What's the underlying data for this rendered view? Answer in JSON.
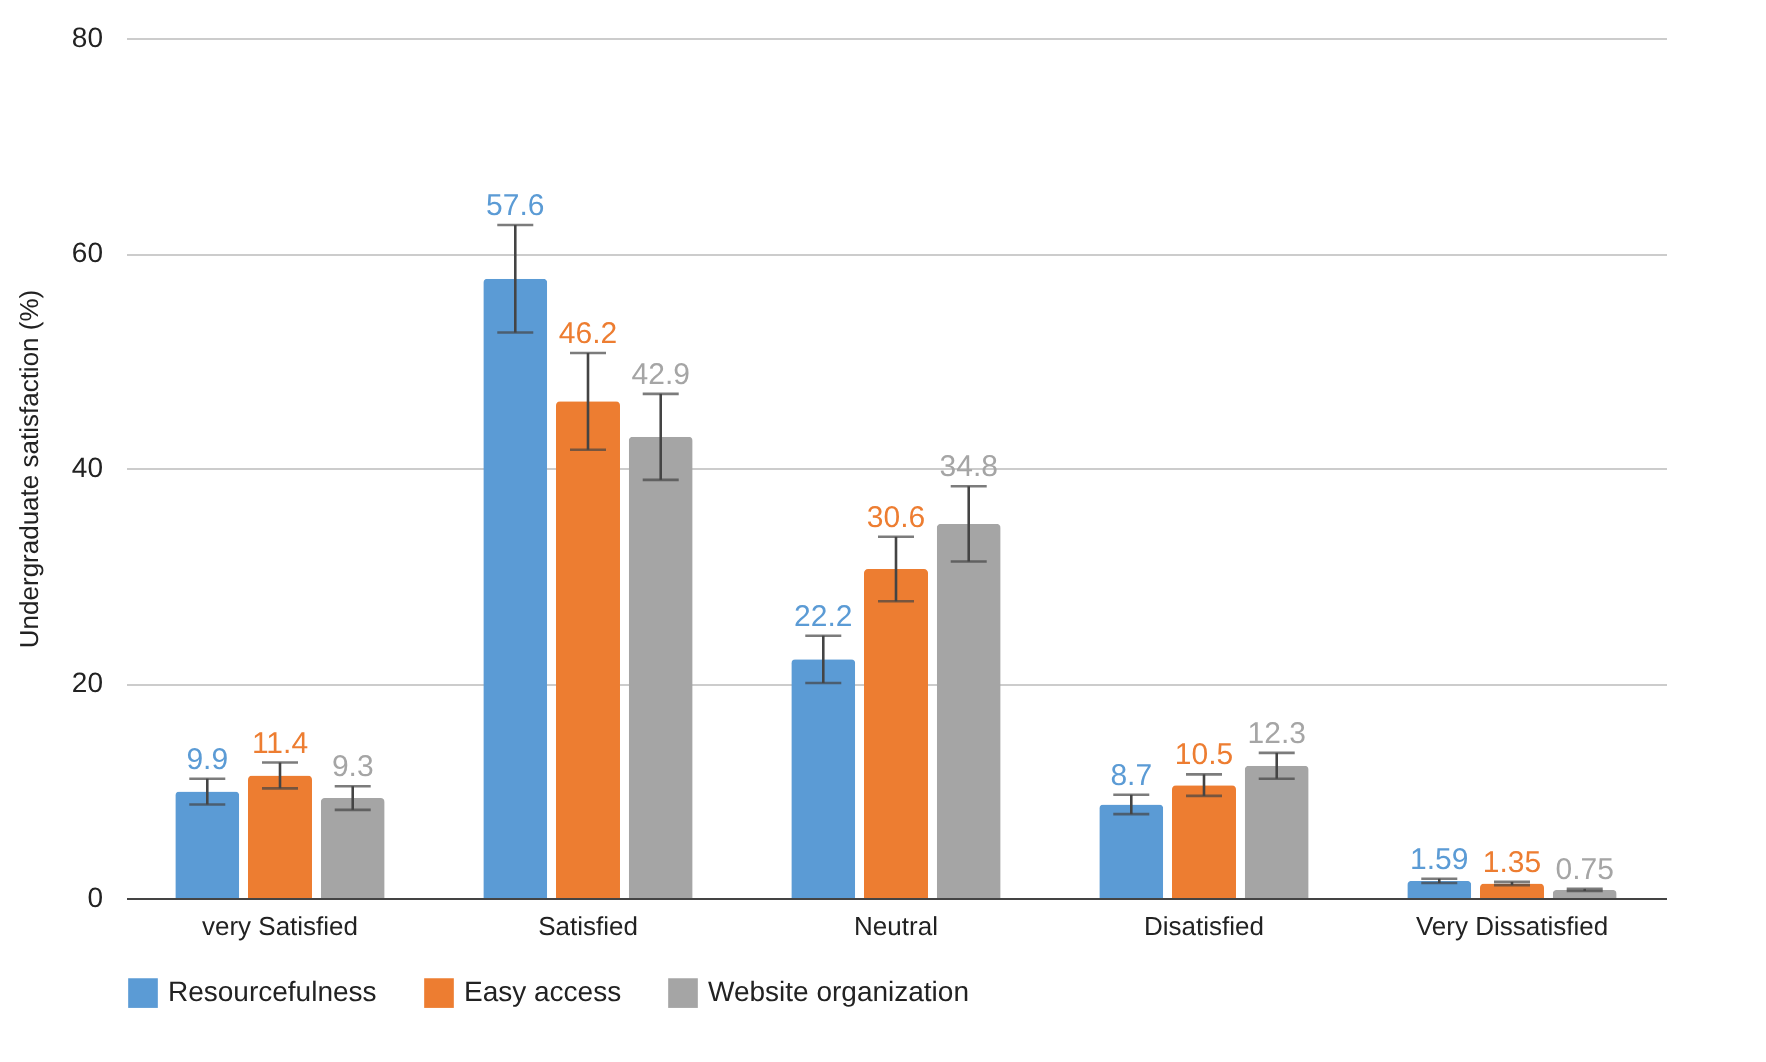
{
  "chart_data": {
    "type": "bar",
    "ylabel": "Undergraduate satisfaction (%)",
    "categories": [
      "very Satisfied",
      "Satisfied",
      "Neutral",
      "Disatisfied",
      "Very Dissatisfied"
    ],
    "series": [
      {
        "name": "Resourcefulness",
        "color": "#5b9bd5",
        "values": [
          9.9,
          57.6,
          22.2,
          8.7,
          1.59
        ],
        "errors": [
          1.2,
          5,
          2.2,
          0.9,
          0.2
        ]
      },
      {
        "name": "Easy access",
        "color": "#ed7d31",
        "values": [
          11.4,
          46.2,
          30.6,
          10.5,
          1.35
        ],
        "errors": [
          1.2,
          4.5,
          3,
          1,
          0.15
        ]
      },
      {
        "name": "Website organization",
        "color": "#a5a5a5",
        "values": [
          9.3,
          42.9,
          34.8,
          12.3,
          0.75
        ],
        "errors": [
          1.1,
          4,
          3.5,
          1.2,
          0.1
        ]
      }
    ],
    "ylim": [
      0,
      80
    ],
    "yticks": [
      0,
      20,
      40,
      60,
      80
    ],
    "grid": "y",
    "legend": "bottom",
    "data_labels": true
  }
}
